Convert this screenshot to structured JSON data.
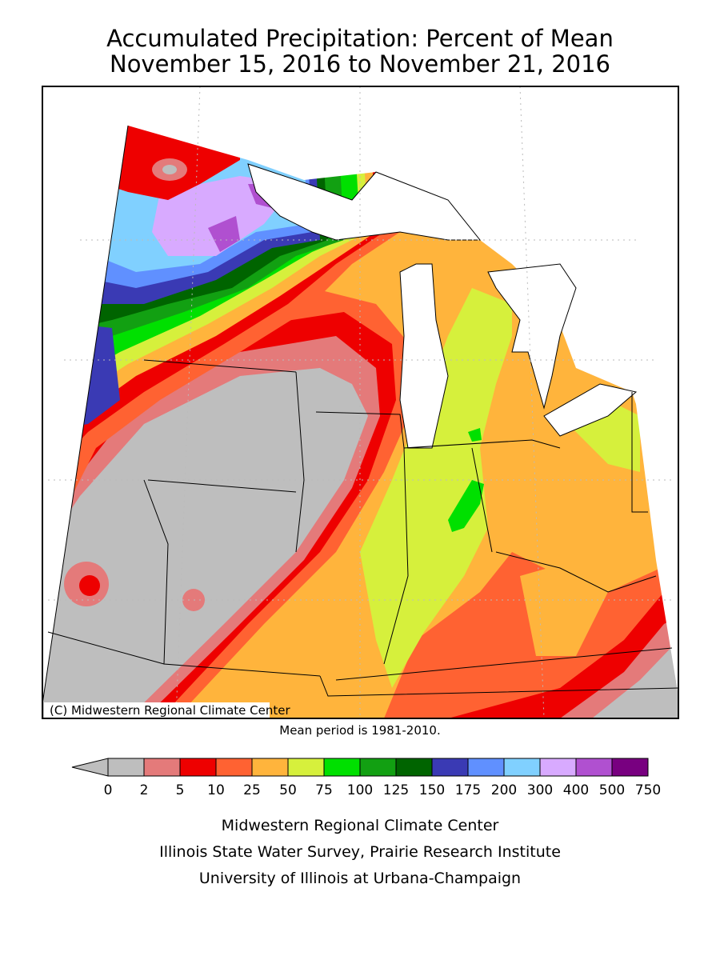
{
  "header": {
    "title": "Accumulated Precipitation: Percent of Mean",
    "subtitle": "November 15, 2016 to November 21, 2016"
  },
  "map": {
    "copyright": "(C) Midwestern Regional Climate Center",
    "note": "Mean period is 1981-2010."
  },
  "legend": {
    "ticks": [
      0,
      2,
      5,
      10,
      25,
      50,
      75,
      100,
      125,
      150,
      175,
      200,
      300,
      400,
      500,
      750
    ],
    "colors": [
      "#bebebe",
      "#e47a7a",
      "#ee0000",
      "#ff6232",
      "#ffb43c",
      "#d6f03c",
      "#00e000",
      "#12a012",
      "#006400",
      "#3a3ab4",
      "#6090ff",
      "#80d0ff",
      "#d8aaff",
      "#b050d0",
      "#780080"
    ]
  },
  "footer": {
    "lines": [
      "Midwestern Regional Climate Center",
      "Illinois State Water Survey, Prairie Research Institute",
      "University of Illinois at Urbana-Champaign"
    ]
  }
}
